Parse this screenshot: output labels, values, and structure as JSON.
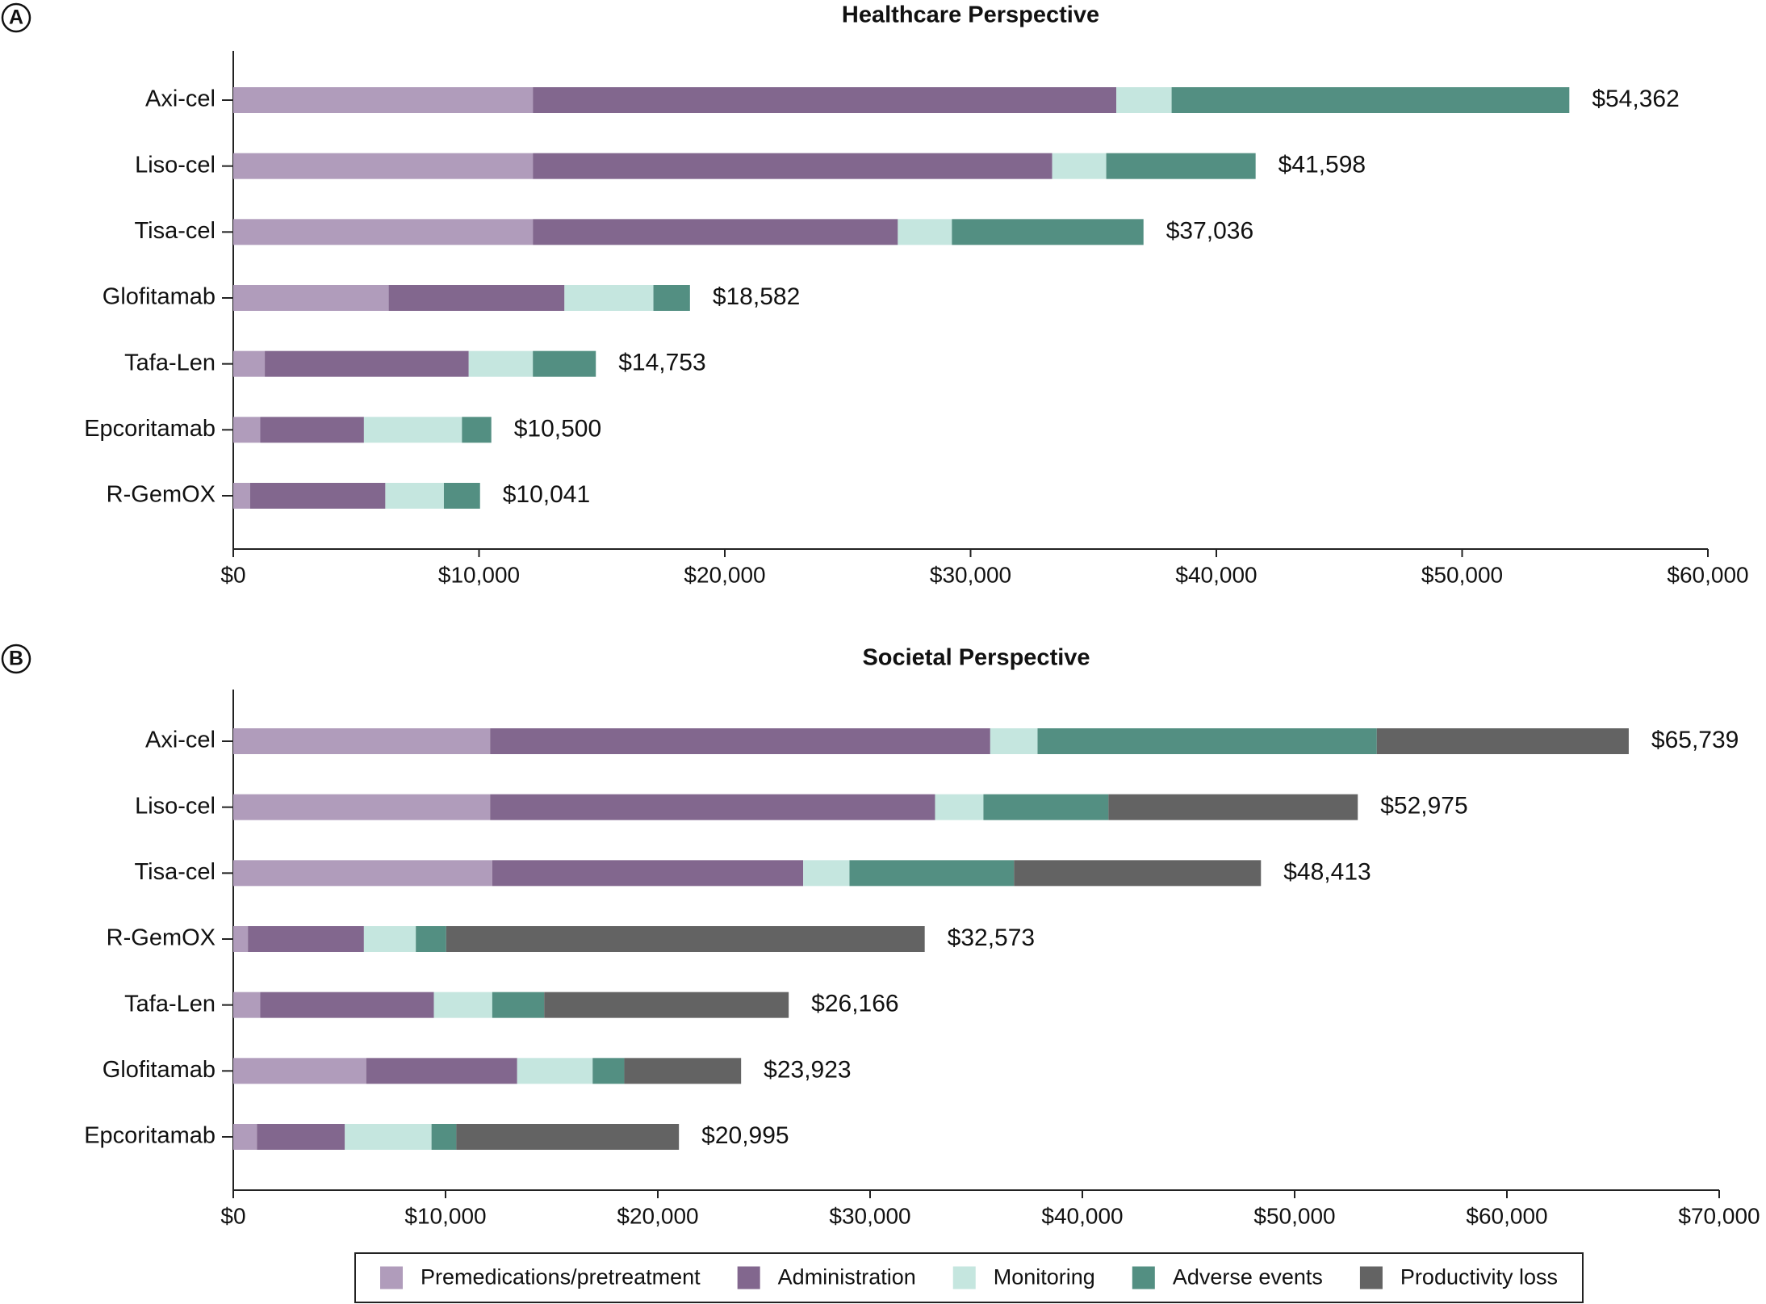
{
  "chart_data": [
    {
      "type": "stacked-bar",
      "orientation": "horizontal",
      "panel": "A",
      "title": "Healthcare Perspective",
      "categories": [
        "Axi-cel",
        "Liso-cel",
        "Tisa-cel",
        "Glofitamab",
        "Tafa-Len",
        "Epcoritamab",
        "R-GemOX"
      ],
      "series": [
        {
          "color": "#b09cbb",
          "values": [
            12190,
            12190,
            12190,
            6325,
            1283,
            1100,
            688
          ]
        },
        {
          "color": "#82678e",
          "values": [
            23740,
            21130,
            14850,
            7150,
            8297,
            4217,
            5499
          ]
        },
        {
          "color": "#c5e6df",
          "values": [
            2250,
            2200,
            2200,
            3620,
            2610,
            3988,
            2383
          ]
        },
        {
          "color": "#538f82",
          "values": [
            16182,
            6078,
            7796,
            1487,
            2563,
            1195,
            1471
          ]
        }
      ],
      "totals": [
        54362,
        41598,
        37036,
        18582,
        14753,
        10500,
        10041
      ],
      "total_labels": [
        "$54,362",
        "$41,598",
        "$37,036",
        "$18,582",
        "$14,753",
        "$10,500",
        "$10,041"
      ],
      "xlim": [
        0,
        60000
      ],
      "xticks": [
        {
          "value": 0,
          "label": "$0"
        },
        {
          "value": 10000,
          "label": "$10,000"
        },
        {
          "value": 20000,
          "label": "$20,000"
        },
        {
          "value": 30000,
          "label": "$30,000"
        },
        {
          "value": 40000,
          "label": "$40,000"
        },
        {
          "value": 50000,
          "label": "$50,000"
        },
        {
          "value": 60000,
          "label": "$60,000"
        }
      ]
    },
    {
      "type": "stacked-bar",
      "orientation": "horizontal",
      "panel": "B",
      "title": "Societal Perspective",
      "categories": [
        "Axi-cel",
        "Liso-cel",
        "Tisa-cel",
        "R-GemOX",
        "Tafa-Len",
        "Glofitamab",
        "Epcoritamab"
      ],
      "series": [
        {
          "name": "Premedications/pretreatment",
          "color": "#b09cbb",
          "values": [
            12100,
            12100,
            12200,
            690,
            1274,
            6263,
            1115
          ]
        },
        {
          "name": "Administration",
          "color": "#82678e",
          "values": [
            23560,
            20960,
            14650,
            5465,
            8176,
            7112,
            4140
          ]
        },
        {
          "name": "Monitoring",
          "color": "#c5e6df",
          "values": [
            2230,
            2280,
            2180,
            2445,
            2750,
            3555,
            4085
          ]
        },
        {
          "name": "Adverse events",
          "color": "#538f82",
          "values": [
            15980,
            5890,
            7750,
            1430,
            2450,
            1490,
            1170
          ]
        },
        {
          "name": "Productivity loss",
          "color": "#636363",
          "values": [
            11869,
            11745,
            11633,
            22543,
            11516,
            5503,
            10485
          ]
        }
      ],
      "totals": [
        65739,
        52975,
        48413,
        32573,
        26166,
        23923,
        20995
      ],
      "total_labels": [
        "$65,739",
        "$52,975",
        "$48,413",
        "$32,573",
        "$26,166",
        "$23,923",
        "$20,995"
      ],
      "xlim": [
        0,
        70000
      ],
      "xticks": [
        {
          "value": 0,
          "label": "$0"
        },
        {
          "value": 10000,
          "label": "$10,000"
        },
        {
          "value": 20000,
          "label": "$20,000"
        },
        {
          "value": 30000,
          "label": "$30,000"
        },
        {
          "value": 40000,
          "label": "$40,000"
        },
        {
          "value": 50000,
          "label": "$50,000"
        },
        {
          "value": 60000,
          "label": "$60,000"
        },
        {
          "value": 70000,
          "label": "$70,000"
        }
      ],
      "legend": "bottom"
    }
  ]
}
